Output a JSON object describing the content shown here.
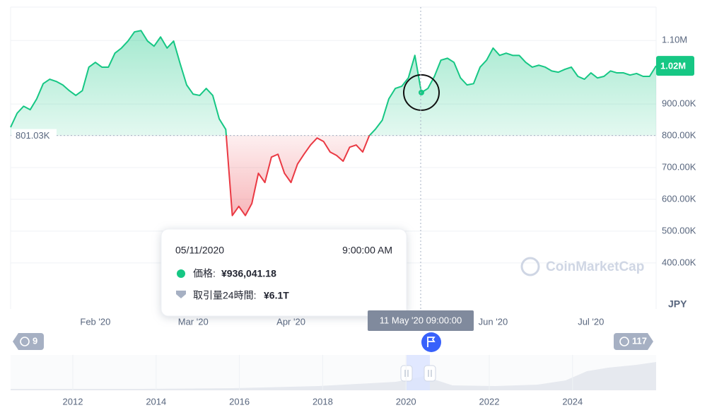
{
  "chart_data": {
    "type": "baseline",
    "categories": [
      null,
      null,
      null,
      null,
      null,
      null,
      null,
      null,
      null,
      null,
      null,
      null,
      null,
      "Feb '20",
      null,
      null,
      null,
      null,
      null,
      null,
      null,
      null,
      null,
      null,
      null,
      null,
      null,
      null,
      "Mar '20",
      null,
      null,
      null,
      null,
      null,
      null,
      null,
      null,
      null,
      null,
      null,
      null,
      null,
      null,
      "Apr '20",
      null,
      null,
      null,
      null,
      null,
      null,
      null,
      null,
      null,
      null,
      null,
      null,
      null,
      null,
      null,
      null,
      null,
      null,
      null,
      null,
      null,
      null,
      null,
      null,
      null,
      null,
      null,
      null,
      null,
      null,
      "Jun '20",
      null,
      null,
      null,
      null,
      null,
      null,
      null,
      null,
      null,
      null,
      null,
      null,
      null,
      null,
      "Jul '20",
      null,
      null,
      null,
      null,
      null,
      null,
      null,
      null,
      null,
      null
    ],
    "series": [
      {
        "color": "#16c784",
        "below_color": "#ea3943",
        "values": [
          827000,
          871000,
          893000,
          882000,
          916000,
          964000,
          978000,
          971000,
          960000,
          942000,
          927000,
          942000,
          1016000,
          1031000,
          1016000,
          1016000,
          1060000,
          1076000,
          1098000,
          1127000,
          1131000,
          1098000,
          1082000,
          1111000,
          1076000,
          1098000,
          1027000,
          960000,
          931000,
          927000,
          949000,
          927000,
          853000,
          820000,
          549000,
          578000,
          549000,
          587000,
          682000,
          653000,
          733000,
          742000,
          682000,
          653000,
          711000,
          742000,
          771000,
          793000,
          782000,
          749000,
          738000,
          720000,
          764000,
          771000,
          749000,
          800000,
          822000,
          849000,
          916000,
          949000,
          956000,
          982000,
          1053000,
          936041.18,
          949000,
          987000,
          1038000,
          1044000,
          1031000,
          982000,
          960000,
          964000,
          1016000,
          1038000,
          1076000,
          1053000,
          1060000,
          1053000,
          1053000,
          1031000,
          1016000,
          1022000,
          1016000,
          1004000,
          1000000,
          1009000,
          1016000,
          987000,
          978000,
          998000,
          982000,
          987000,
          1004000,
          998000,
          998000,
          991000,
          996000,
          987000,
          987000,
          1020000
        ]
      }
    ],
    "baseline": {
      "value": 801030,
      "label": "801.03K"
    },
    "last_price": {
      "value": 1020000,
      "label": "1.02M"
    },
    "ylim": [
      255000,
      1205000
    ],
    "yticks": [
      {
        "value": 400000,
        "label": "400.00K"
      },
      {
        "value": 500000,
        "label": "500.00K"
      },
      {
        "value": 600000,
        "label": "600.00K"
      },
      {
        "value": 700000,
        "label": "700.00K"
      },
      {
        "value": 800000,
        "label": "800.00K"
      },
      {
        "value": 900000,
        "label": "900.00K"
      },
      {
        "value": 1100000,
        "label": "1.10M"
      }
    ],
    "grid": true,
    "y_unit": "JPY",
    "watermark": "CoinMarketCap",
    "hover_label": "11 May '20 09:00:00",
    "tooltip": {
      "date": "05/11/2020",
      "time": "9:00:00 AM",
      "price_name": "価格:",
      "value": 936041.18,
      "price": "¥936,041.18",
      "volume_name": "取引量24時間:",
      "volume": "¥6.1T"
    },
    "navigator": {
      "categories": [
        "2012",
        "2014",
        "2016",
        "2018",
        "2020",
        "2022",
        "2024"
      ],
      "left_badge": "9",
      "right_badge": "117"
    }
  }
}
